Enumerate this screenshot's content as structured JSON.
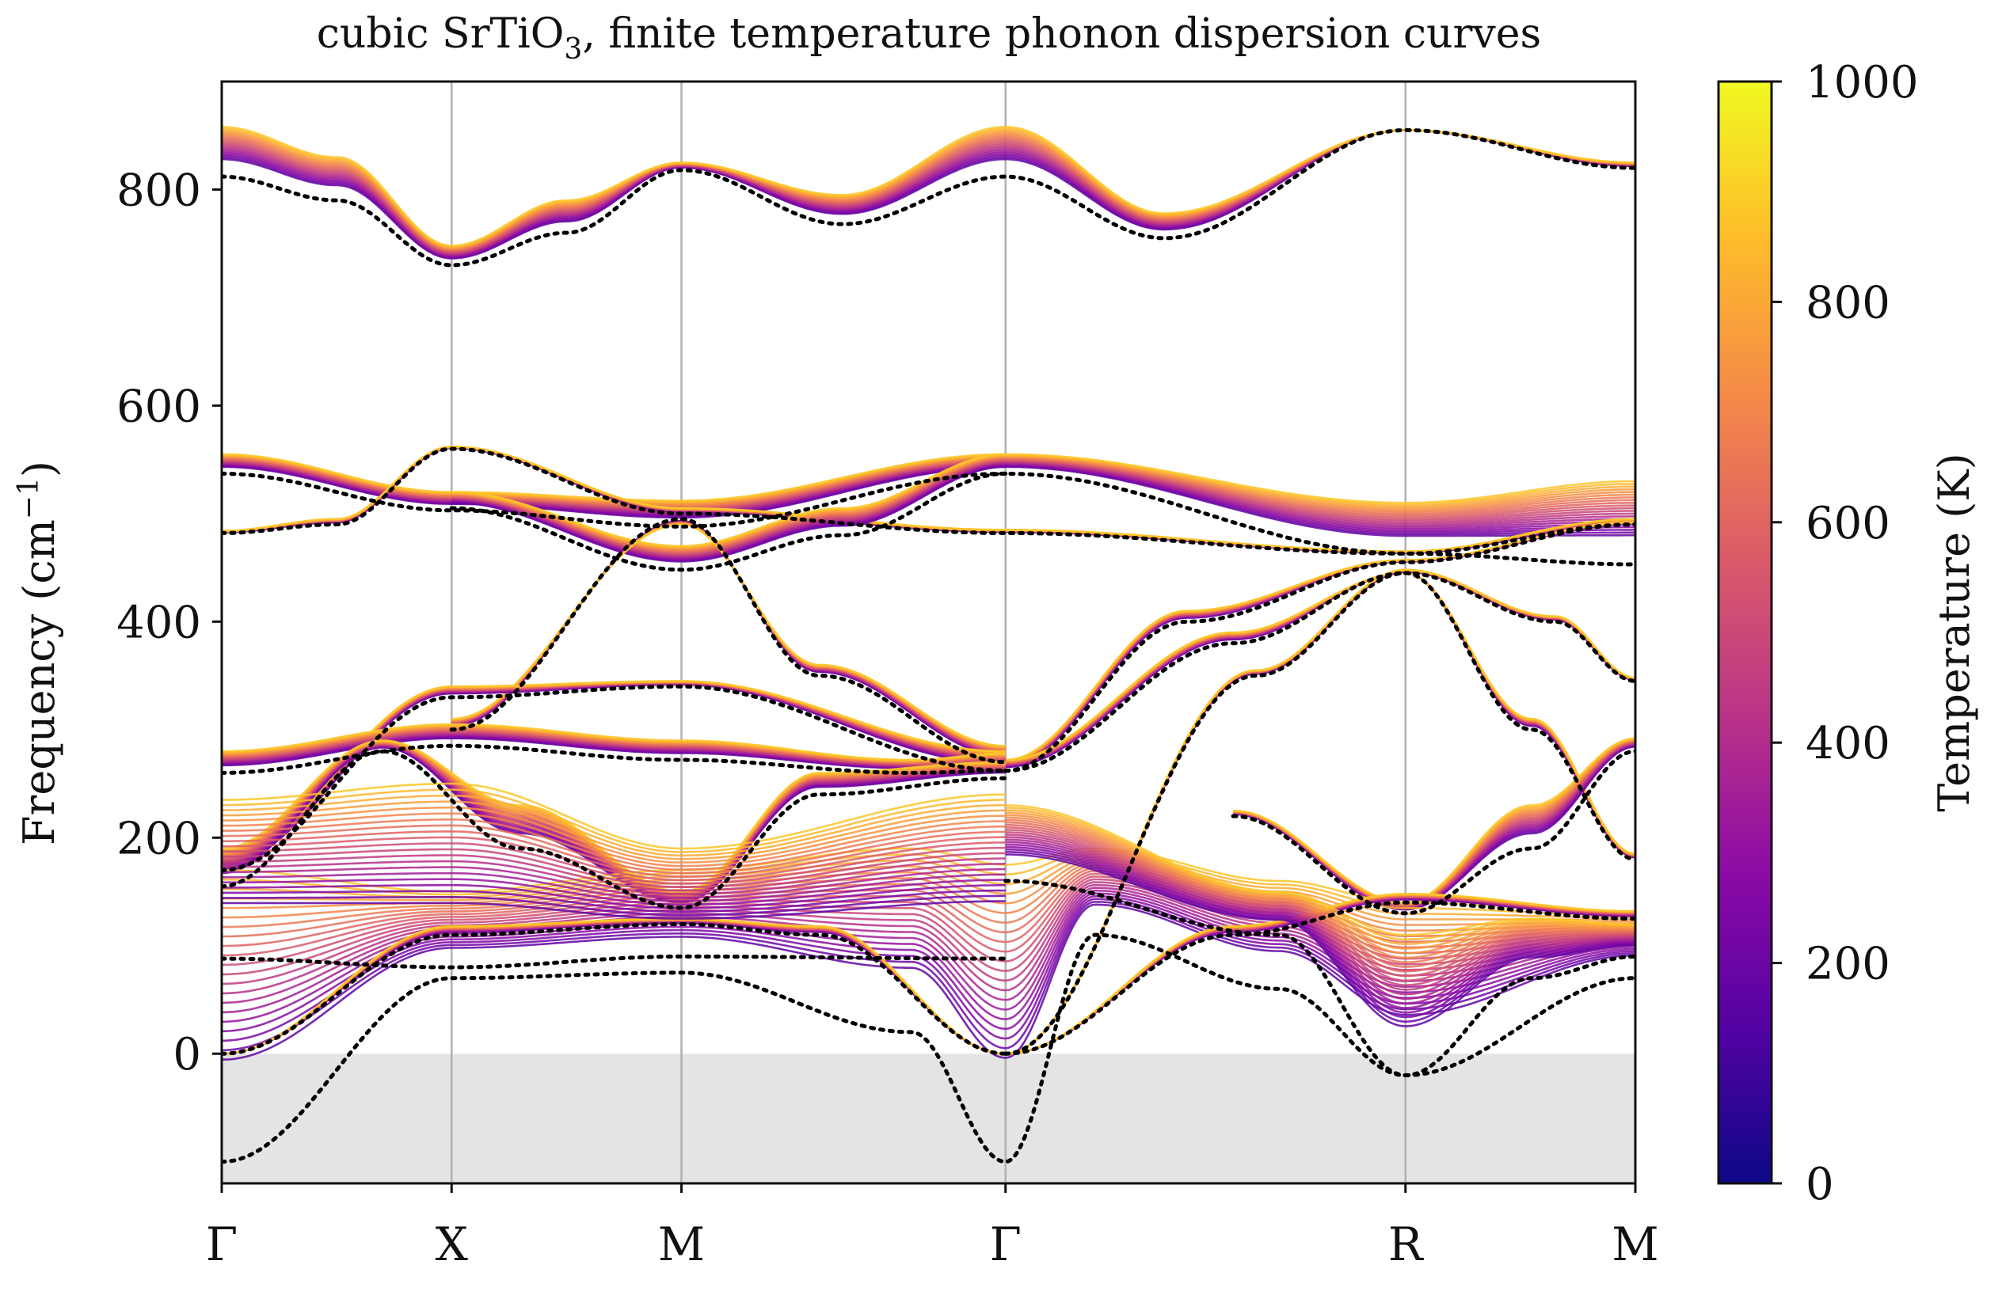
{
  "chart_data": {
    "type": "line",
    "title_prefix": "cubic SrTiO",
    "title_subscript": "3",
    "title_suffix": ", finite temperature phonon dispersion curves",
    "ylabel": "Frequency (cm",
    "ylabel_sup": "−1",
    "ylabel_close": ")",
    "ylim": [
      -120,
      900
    ],
    "yticks": [
      0,
      200,
      400,
      600,
      800
    ],
    "ytick_labels": [
      "0",
      "200",
      "400",
      "600",
      "800"
    ],
    "high_symbol_points": [
      {
        "label": "Γ",
        "x": 0.0
      },
      {
        "label": "X",
        "x": 1.0
      },
      {
        "label": "M",
        "x": 2.0
      },
      {
        "label": "Γ",
        "x": 3.41
      },
      {
        "label": "R",
        "x": 5.15
      },
      {
        "label": "M",
        "x": 6.15
      }
    ],
    "negative_region_shaded": true,
    "colorbar": {
      "label": "Temperature (K)",
      "range": [
        0,
        1000
      ],
      "ticks": [
        "0",
        "200",
        "400",
        "600",
        "800",
        "1000"
      ],
      "colormap": "plasma",
      "colors": [
        "#0d0887",
        "#5302a3",
        "#8b0aa5",
        "#b83289",
        "#db5c68",
        "#f48849",
        "#febd2a",
        "#f0f921"
      ]
    },
    "temperatures": [
      200,
      240,
      280,
      320,
      360,
      400,
      440,
      480,
      520,
      560,
      600,
      640,
      680,
      720,
      760,
      800,
      840,
      880,
      920,
      960,
      1000
    ],
    "reference_series": {
      "name": "0 K harmonic (dotted)",
      "style": "dotted",
      "color": "#000000"
    },
    "branches": [
      {
        "name": "optical-high",
        "x": [
          0,
          0.5,
          1,
          1.5,
          2,
          2.7,
          3.41,
          4.1,
          5.15,
          6.15
        ],
        "y0": [
          812,
          790,
          730,
          760,
          818,
          768,
          812,
          755,
          855,
          820
        ],
        "y1": [
          858,
          830,
          748,
          790,
          825,
          795,
          858,
          778,
          855,
          825
        ]
      },
      {
        "name": "optical-550",
        "x": [
          0,
          1,
          2,
          3.41,
          5.15,
          6.15
        ],
        "y0": [
          537,
          503,
          488,
          537,
          463,
          453
        ],
        "y1": [
          555,
          520,
          512,
          555,
          510,
          530
        ]
      },
      {
        "name": "optical-482",
        "x": [
          0,
          0.5,
          1,
          2,
          3.41,
          5.15,
          6.15
        ],
        "y0": [
          482,
          490,
          560,
          500,
          482,
          463,
          490
        ],
        "y1": [
          484,
          495,
          562,
          505,
          485,
          465,
          495
        ]
      },
      {
        "name": "optical-x-drop",
        "x": [
          1,
          2,
          2.7,
          3.41
        ],
        "y0": [
          505,
          448,
          480,
          537
        ],
        "y1": [
          520,
          470,
          505,
          555
        ]
      },
      {
        "name": "mixed-up-to-R",
        "x": [
          3.41,
          4.2,
          5.15,
          6.15
        ],
        "y0": [
          262,
          400,
          455,
          490
        ],
        "y1": [
          272,
          410,
          457,
          492
        ]
      },
      {
        "name": "mixed-R-peak",
        "x": [
          3.41,
          4.4,
          5.15,
          5.7,
          6.15
        ],
        "y0": [
          262,
          380,
          445,
          300,
          180
        ],
        "y1": [
          272,
          390,
          445,
          310,
          185
        ]
      },
      {
        "name": "acoustic-R-high",
        "x": [
          3.41,
          4.5,
          5.15,
          5.8,
          6.15
        ],
        "y0": [
          0,
          350,
          445,
          400,
          345
        ],
        "y1": [
          0,
          355,
          448,
          405,
          348
        ]
      },
      {
        "name": "gamma-M-steep",
        "x": [
          1,
          2,
          2.6,
          3.41
        ],
        "y0": [
          300,
          495,
          350,
          270
        ],
        "y1": [
          310,
          490,
          360,
          285
        ]
      },
      {
        "name": "gamma-X-rise",
        "x": [
          0,
          1,
          2,
          3.41
        ],
        "y0": [
          170,
          330,
          340,
          262
        ],
        "y1": [
          185,
          340,
          345,
          280
        ]
      },
      {
        "name": "optical-280",
        "x": [
          0,
          1,
          2,
          3.0,
          3.41
        ],
        "y0": [
          260,
          285,
          272,
          260,
          262
        ],
        "y1": [
          280,
          305,
          290,
          272,
          278
        ]
      },
      {
        "name": "soft-gamma-cross",
        "x": [
          0,
          0.7,
          1.3,
          2,
          2.6,
          3.41
        ],
        "y0": [
          155,
          280,
          190,
          135,
          240,
          255
        ],
        "y1": [
          190,
          290,
          230,
          150,
          260,
          270
        ]
      },
      {
        "name": "soft-R-M",
        "x": [
          4.4,
          5.15,
          5.7,
          6.15
        ],
        "y0": [
          220,
          130,
          190,
          280
        ],
        "y1": [
          225,
          140,
          230,
          292
        ]
      },
      {
        "name": "tilt-mode-G",
        "x": [
          0,
          1,
          2,
          3.0,
          3.41,
          3.8,
          4.6,
          5.15,
          6.15
        ],
        "y0": [
          -100,
          70,
          75,
          20,
          -100,
          110,
          60,
          -20,
          70
        ],
        "y1": [
          170,
          150,
          170,
          190,
          175,
          190,
          160,
          140,
          130
        ]
      },
      {
        "name": "acoustic-TA",
        "x": [
          0,
          1,
          2,
          2.6,
          3.41
        ],
        "y0": [
          0,
          110,
          120,
          110,
          0
        ],
        "y1": [
          0,
          118,
          125,
          118,
          0
        ]
      },
      {
        "name": "acoustic-TA-R",
        "x": [
          3.41,
          4.4,
          5.15,
          6.15
        ],
        "y0": [
          0,
          110,
          140,
          125
        ],
        "y1": [
          0,
          118,
          148,
          132
        ]
      },
      {
        "name": "soft-R-low",
        "x": [
          3.41,
          4.6,
          5.15,
          5.7,
          6.15
        ],
        "y0": [
          160,
          110,
          -20,
          70,
          90
        ],
        "y1": [
          230,
          150,
          110,
          125,
          120
        ]
      },
      {
        "name": "low-gamma-soft",
        "x": [
          0,
          1,
          2,
          3.41
        ],
        "y0": [
          88,
          80,
          90,
          88
        ],
        "y1": [
          235,
          250,
          190,
          240
        ]
      }
    ]
  }
}
